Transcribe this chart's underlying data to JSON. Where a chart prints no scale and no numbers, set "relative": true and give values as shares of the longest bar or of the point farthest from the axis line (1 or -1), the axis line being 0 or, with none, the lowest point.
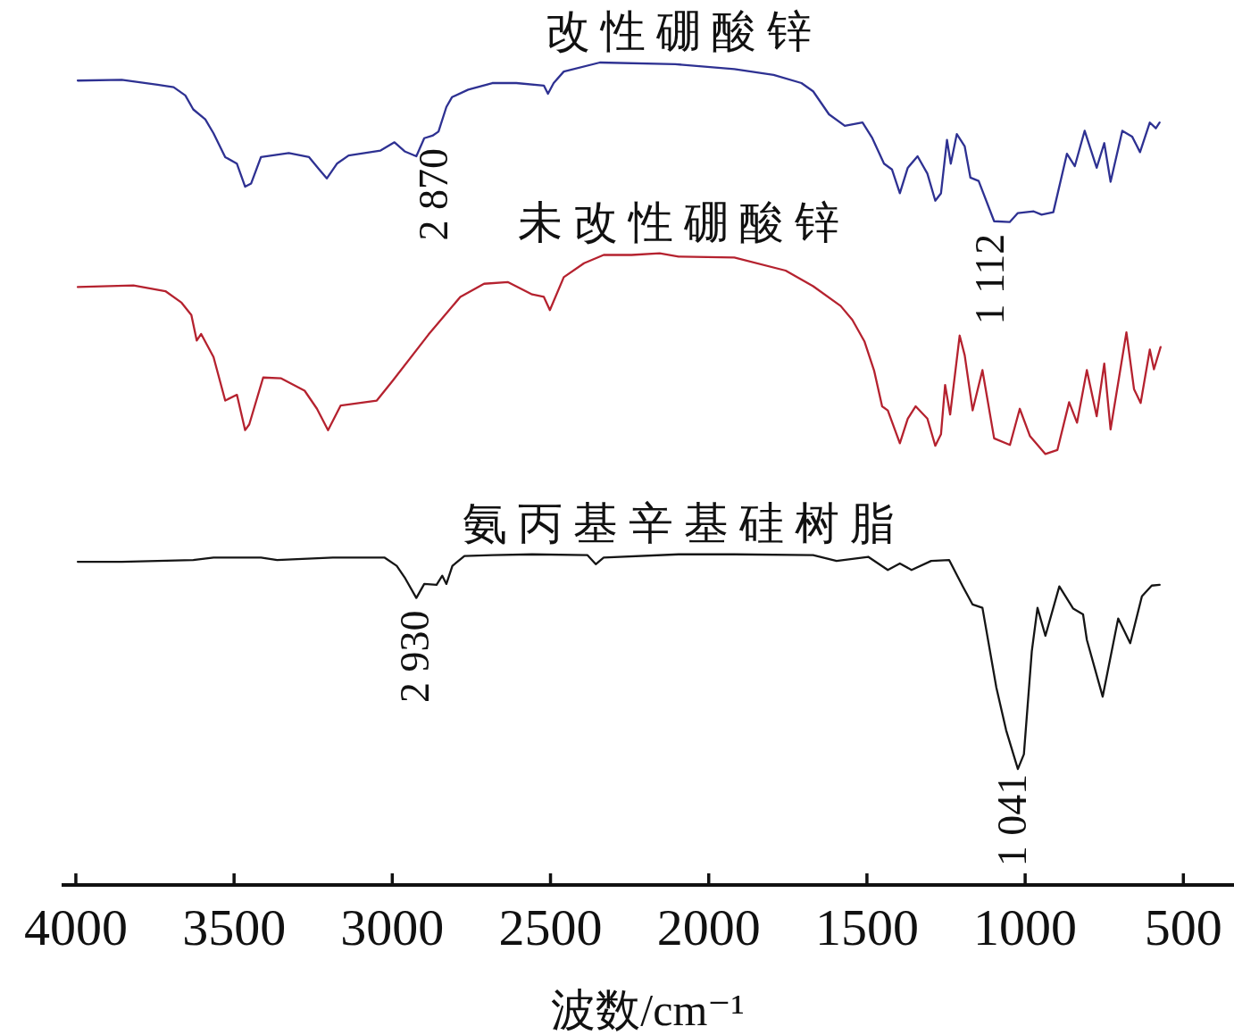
{
  "chart_data": {
    "type": "line",
    "relative": true,
    "xlabel": "波数/cm⁻¹",
    "xlim": [
      4045,
      340
    ],
    "xticks": [
      4000,
      3500,
      3000,
      2500,
      2000,
      1500,
      1000,
      500
    ],
    "series": [
      {
        "name": "改性硼酸锌",
        "color": "#2e3192",
        "x": [
          3994,
          3855,
          3742,
          3691,
          3654,
          3629,
          3591,
          3565,
          3528,
          3491,
          3465,
          3446,
          3415,
          3327,
          3263,
          3231,
          3207,
          3175,
          3138,
          3037,
          2993,
          2961,
          2924,
          2899,
          2873,
          2854,
          2829,
          2811,
          2760,
          2684,
          2608,
          2521,
          2508,
          2490,
          2458,
          2344,
          2106,
          1919,
          1795,
          1707,
          1670,
          1620,
          1570,
          1514,
          1483,
          1446,
          1421,
          1396,
          1371,
          1340,
          1309,
          1284,
          1266,
          1247,
          1235,
          1216,
          1191,
          1173,
          1147,
          1098,
          1049,
          1023,
          973,
          948,
          911,
          868,
          843,
          812,
          774,
          750,
          730,
          693,
          662,
          637,
          606,
          587,
          575
        ],
        "values": [
          0.978,
          0.979,
          0.973,
          0.97,
          0.96,
          0.943,
          0.931,
          0.914,
          0.885,
          0.877,
          0.849,
          0.853,
          0.885,
          0.89,
          0.885,
          0.87,
          0.859,
          0.877,
          0.887,
          0.893,
          0.903,
          0.892,
          0.886,
          0.908,
          0.911,
          0.916,
          0.946,
          0.958,
          0.967,
          0.975,
          0.975,
          0.972,
          0.962,
          0.975,
          0.989,
          1.0,
          0.998,
          0.992,
          0.985,
          0.975,
          0.965,
          0.937,
          0.923,
          0.927,
          0.908,
          0.877,
          0.87,
          0.841,
          0.872,
          0.886,
          0.865,
          0.832,
          0.841,
          0.906,
          0.877,
          0.913,
          0.898,
          0.86,
          0.856,
          0.807,
          0.806,
          0.817,
          0.819,
          0.815,
          0.818,
          0.889,
          0.874,
          0.917,
          0.872,
          0.902,
          0.855,
          0.917,
          0.91,
          0.891,
          0.927,
          0.92,
          0.927
        ]
      },
      {
        "name": "未改性硼酸锌",
        "color": "#b5222f",
        "x": [
          3994,
          3818,
          3717,
          3666,
          3635,
          3618,
          3604,
          3565,
          3528,
          3491,
          3465,
          3452,
          3408,
          3351,
          3277,
          3238,
          3203,
          3163,
          3049,
          2999,
          2886,
          2785,
          2710,
          2634,
          2558,
          2521,
          2502,
          2458,
          2394,
          2332,
          2244,
          2155,
          2095,
          1919,
          1757,
          1670,
          1583,
          1546,
          1508,
          1477,
          1452,
          1434,
          1396,
          1371,
          1346,
          1309,
          1284,
          1266,
          1253,
          1237,
          1207,
          1191,
          1166,
          1135,
          1098,
          1048,
          1017,
          985,
          936,
          898,
          861,
          836,
          805,
          774,
          750,
          730,
          680,
          656,
          635,
          606,
          593,
          572
        ],
        "values": [
          0.727,
          0.729,
          0.722,
          0.708,
          0.693,
          0.662,
          0.67,
          0.642,
          0.589,
          0.596,
          0.553,
          0.56,
          0.617,
          0.616,
          0.601,
          0.579,
          0.553,
          0.583,
          0.589,
          0.613,
          0.669,
          0.715,
          0.731,
          0.733,
          0.718,
          0.715,
          0.699,
          0.739,
          0.756,
          0.766,
          0.766,
          0.768,
          0.764,
          0.763,
          0.747,
          0.728,
          0.704,
          0.687,
          0.661,
          0.625,
          0.582,
          0.577,
          0.537,
          0.567,
          0.582,
          0.567,
          0.534,
          0.548,
          0.608,
          0.572,
          0.668,
          0.644,
          0.577,
          0.626,
          0.543,
          0.535,
          0.579,
          0.546,
          0.524,
          0.529,
          0.587,
          0.562,
          0.626,
          0.57,
          0.634,
          0.554,
          0.672,
          0.603,
          0.586,
          0.651,
          0.627,
          0.654
        ]
      },
      {
        "name": "氨丙基辛基硅树脂",
        "color": "#151515",
        "x": [
          3994,
          3855,
          3629,
          3565,
          3415,
          3364,
          3188,
          3024,
          2986,
          2961,
          2924,
          2899,
          2860,
          2842,
          2829,
          2810,
          2772,
          2684,
          2558,
          2383,
          2357,
          2332,
          2095,
          1919,
          1670,
          1596,
          1496,
          1434,
          1396,
          1359,
          1297,
          1240,
          1197,
          1166,
          1135,
          1091,
          1060,
          1023,
          1004,
          979,
          961,
          936,
          892,
          848,
          817,
          805,
          755,
          706,
          668,
          631,
          600,
          575
        ],
        "values": [
          0.393,
          0.393,
          0.395,
          0.398,
          0.398,
          0.395,
          0.398,
          0.398,
          0.388,
          0.374,
          0.349,
          0.366,
          0.365,
          0.376,
          0.366,
          0.388,
          0.4,
          0.401,
          0.402,
          0.401,
          0.39,
          0.398,
          0.402,
          0.402,
          0.401,
          0.394,
          0.399,
          0.383,
          0.391,
          0.383,
          0.394,
          0.395,
          0.363,
          0.341,
          0.337,
          0.24,
          0.188,
          0.141,
          0.159,
          0.284,
          0.337,
          0.303,
          0.363,
          0.336,
          0.329,
          0.298,
          0.229,
          0.324,
          0.294,
          0.351,
          0.364,
          0.365
        ]
      }
    ],
    "annotations": [
      {
        "text": "2 870",
        "x": 2870,
        "y": 0.911
      },
      {
        "text": "1 112",
        "x": 1112,
        "y": 0.807
      },
      {
        "text": "2 930",
        "x": 2930,
        "y": 0.349
      },
      {
        "text": "1 041",
        "x": 1041,
        "y": 0.15
      }
    ]
  }
}
